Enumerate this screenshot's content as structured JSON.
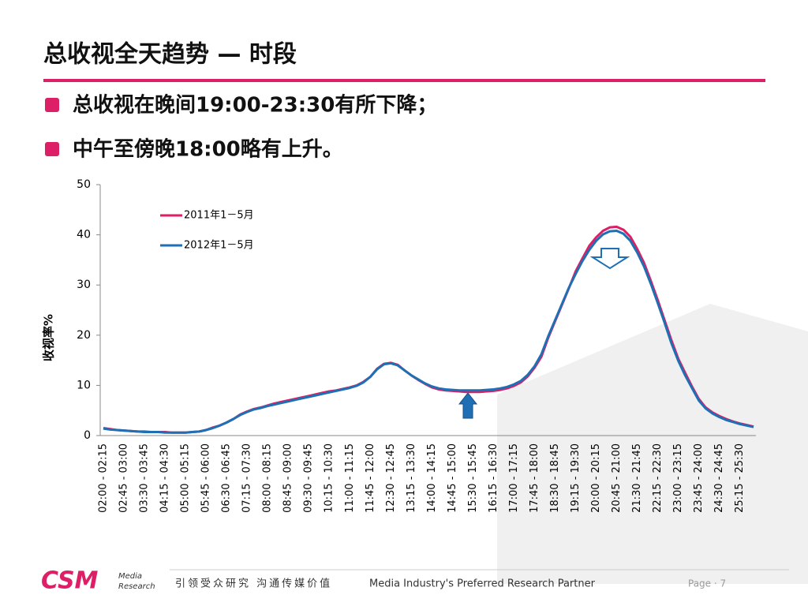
{
  "slide_title": "总收视全天趋势 — 时段",
  "bullets": [
    "总收视在晚间19:00-23:30有所下降；",
    "中午至傍晚18:00略有上升。"
  ],
  "footer": {
    "logo": "CSM",
    "logo_sub": [
      "Media",
      "Research"
    ],
    "slogan": "引领受众研究 沟通传媒价值",
    "tagline": "Media Industry's Preferred Research Partner",
    "page": "Page · 7"
  },
  "chart_data": {
    "type": "line",
    "ylabel": "收视率%",
    "ylim": [
      0,
      50
    ],
    "yticks": [
      0,
      10,
      20,
      30,
      40,
      50
    ],
    "legend": "top-left",
    "categories": [
      "02:00 - 02:15",
      null,
      null,
      "02:45 - 03:00",
      null,
      null,
      "03:30 - 03:45",
      null,
      null,
      "04:15 - 04:30",
      null,
      null,
      "05:00 - 05:15",
      null,
      null,
      "05:45 - 06:00",
      null,
      null,
      "06:30 - 06:45",
      null,
      null,
      "07:15 - 07:30",
      null,
      null,
      "08:00 - 08:15",
      null,
      null,
      "08:45 - 09:00",
      null,
      null,
      "09:30 - 09:45",
      null,
      null,
      "10:15 - 10:30",
      null,
      null,
      "11:00 - 11:15",
      null,
      null,
      "11:45 - 12:00",
      null,
      null,
      "12:30 - 12:45",
      null,
      null,
      "13:15 - 13:30",
      null,
      null,
      "14:00 - 14:15",
      null,
      null,
      "14:45 - 15:00",
      null,
      null,
      "15:30 - 15:45",
      null,
      null,
      "16:15 - 16:30",
      null,
      null,
      "17:00 - 17:15",
      null,
      null,
      "17:45 - 18:00",
      null,
      null,
      "18:30 - 18:45",
      null,
      null,
      "19:15 - 19:30",
      null,
      null,
      "20:00 - 20:15",
      null,
      null,
      "20:45 - 21:00",
      null,
      null,
      "21:30 - 21:45",
      null,
      null,
      "22:15 - 22:30",
      null,
      null,
      "23:00 - 23:15",
      null,
      null,
      "23:45 - 24:00",
      null,
      null,
      "24:30 - 24:45",
      null,
      null,
      "25:15 - 25:30",
      null,
      null
    ],
    "series": [
      {
        "name": "2011年1－5月",
        "color": "#dc1f66",
        "values": [
          1.5,
          1.3,
          1.1,
          1.0,
          0.9,
          0.8,
          0.8,
          0.7,
          0.7,
          0.7,
          0.6,
          0.6,
          0.6,
          0.7,
          0.8,
          1.1,
          1.6,
          2.0,
          2.6,
          3.3,
          4.2,
          4.8,
          5.3,
          5.6,
          6.0,
          6.4,
          6.7,
          7.0,
          7.3,
          7.6,
          7.9,
          8.2,
          8.5,
          8.8,
          9.0,
          9.3,
          9.6,
          10.0,
          10.7,
          11.7,
          13.3,
          14.3,
          14.5,
          14.1,
          13.0,
          12.0,
          11.1,
          10.3,
          9.6,
          9.2,
          9.0,
          8.9,
          8.8,
          8.7,
          8.7,
          8.7,
          8.8,
          8.9,
          9.1,
          9.4,
          9.9,
          10.6,
          11.8,
          13.5,
          15.7,
          19.5,
          22.8,
          26.0,
          29.3,
          32.7,
          35.3,
          37.8,
          39.5,
          40.8,
          41.5,
          41.6,
          41.0,
          39.6,
          37.2,
          34.4,
          30.8,
          27.0,
          23.0,
          19.0,
          15.3,
          12.5,
          9.8,
          7.3,
          5.6,
          4.6,
          3.9,
          3.3,
          2.8,
          2.4,
          2.1,
          1.8
        ]
      },
      {
        "name": "2012年1－5月",
        "color": "#1f6fb4",
        "values": [
          1.4,
          1.2,
          1.1,
          1.0,
          0.9,
          0.8,
          0.7,
          0.7,
          0.7,
          0.6,
          0.6,
          0.6,
          0.6,
          0.7,
          0.8,
          1.1,
          1.5,
          2.0,
          2.6,
          3.3,
          4.1,
          4.7,
          5.2,
          5.5,
          5.9,
          6.2,
          6.5,
          6.8,
          7.1,
          7.4,
          7.7,
          8.0,
          8.3,
          8.6,
          8.9,
          9.2,
          9.5,
          9.9,
          10.6,
          11.7,
          13.2,
          14.2,
          14.4,
          14.0,
          13.0,
          12.0,
          11.2,
          10.4,
          9.8,
          9.4,
          9.2,
          9.1,
          9.0,
          9.0,
          9.0,
          9.0,
          9.1,
          9.2,
          9.4,
          9.7,
          10.2,
          10.9,
          12.1,
          13.8,
          16.2,
          19.8,
          23.0,
          26.2,
          29.4,
          32.2,
          34.8,
          37.0,
          38.8,
          40.1,
          40.7,
          40.8,
          40.2,
          38.8,
          36.5,
          33.7,
          30.2,
          26.4,
          22.5,
          18.4,
          14.9,
          12.0,
          9.5,
          7.0,
          5.4,
          4.4,
          3.7,
          3.1,
          2.7,
          2.3,
          2.0,
          1.7
        ]
      }
    ]
  }
}
